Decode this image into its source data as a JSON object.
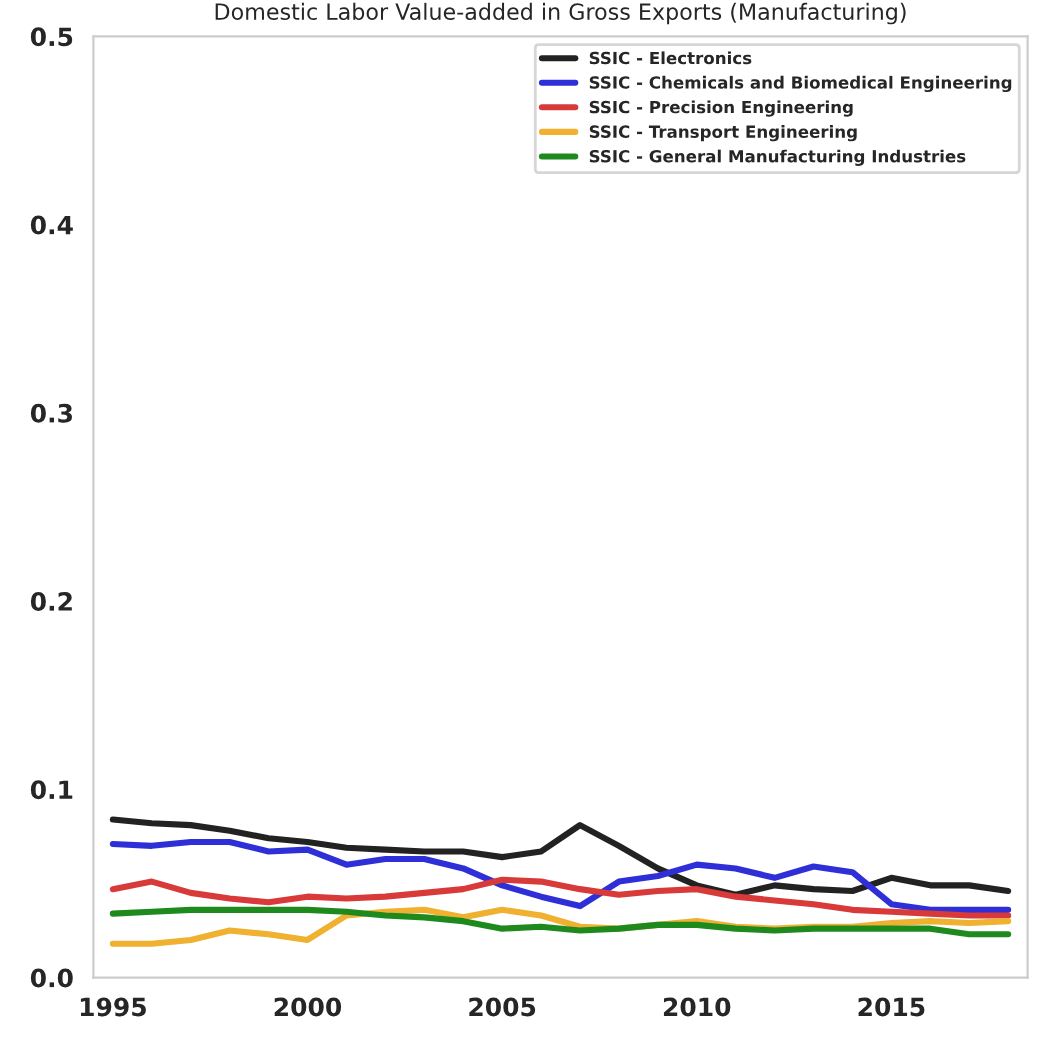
{
  "chart_data": {
    "type": "line",
    "title": "Domestic Labor Value-added in Gross Exports (Manufacturing)",
    "x": [
      1995,
      1996,
      1997,
      1998,
      1999,
      2000,
      2001,
      2002,
      2003,
      2004,
      2005,
      2006,
      2007,
      2008,
      2009,
      2010,
      2011,
      2012,
      2013,
      2014,
      2015,
      2016,
      2017,
      2018
    ],
    "series": [
      {
        "name": "SSIC - Electronics",
        "color": "#222222",
        "values": [
          0.084,
          0.082,
          0.081,
          0.078,
          0.074,
          0.072,
          0.069,
          0.068,
          0.067,
          0.067,
          0.064,
          0.067,
          0.081,
          0.07,
          0.058,
          0.049,
          0.044,
          0.049,
          0.047,
          0.046,
          0.053,
          0.049,
          0.049,
          0.046
        ]
      },
      {
        "name": "SSIC - Chemicals and Biomedical Engineering",
        "color": "#2f2fd8",
        "values": [
          0.071,
          0.07,
          0.072,
          0.072,
          0.067,
          0.068,
          0.06,
          0.063,
          0.063,
          0.058,
          0.049,
          0.043,
          0.038,
          0.051,
          0.054,
          0.06,
          0.058,
          0.053,
          0.059,
          0.056,
          0.039,
          0.036,
          0.036,
          0.036
        ]
      },
      {
        "name": "SSIC - Precision Engineering",
        "color": "#d83a3a",
        "values": [
          0.047,
          0.051,
          0.045,
          0.042,
          0.04,
          0.043,
          0.042,
          0.043,
          0.045,
          0.047,
          0.052,
          0.051,
          0.047,
          0.044,
          0.046,
          0.047,
          0.043,
          0.041,
          0.039,
          0.036,
          0.035,
          0.034,
          0.033,
          0.033
        ]
      },
      {
        "name": "SSIC - Transport Engineering",
        "color": "#f0b030",
        "values": [
          0.018,
          0.018,
          0.02,
          0.025,
          0.023,
          0.02,
          0.033,
          0.035,
          0.036,
          0.032,
          0.036,
          0.033,
          0.027,
          0.026,
          0.028,
          0.03,
          0.027,
          0.026,
          0.027,
          0.027,
          0.029,
          0.03,
          0.029,
          0.03
        ]
      },
      {
        "name": "SSIC - General Manufacturing Industries",
        "color": "#1e8a1e",
        "values": [
          0.034,
          0.035,
          0.036,
          0.036,
          0.036,
          0.036,
          0.035,
          0.033,
          0.032,
          0.03,
          0.026,
          0.027,
          0.025,
          0.026,
          0.028,
          0.028,
          0.026,
          0.025,
          0.026,
          0.026,
          0.026,
          0.026,
          0.023,
          0.023
        ]
      }
    ],
    "xlim": [
      1994.5,
      2018.5
    ],
    "xticks": [
      1995,
      2000,
      2005,
      2010,
      2015
    ],
    "ylim": [
      0,
      0.5
    ],
    "yticks": [
      {
        "value": 0,
        "label": "0.0"
      },
      0.1,
      0.2,
      0.3,
      0.4,
      0.5
    ],
    "legend": "top right",
    "grid": false,
    "marker": "none",
    "line_style": "solid"
  }
}
